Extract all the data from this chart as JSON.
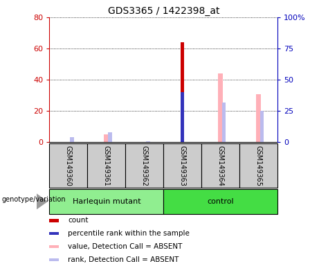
{
  "title": "GDS3365 / 1422398_at",
  "samples": [
    "GSM149360",
    "GSM149361",
    "GSM149362",
    "GSM149363",
    "GSM149364",
    "GSM149365"
  ],
  "red_bars": [
    0,
    0,
    0,
    64,
    0,
    0
  ],
  "blue_bars": [
    0,
    0,
    0,
    40,
    0,
    0
  ],
  "pink_bars": [
    0,
    5,
    0,
    0,
    44,
    31
  ],
  "lavender_bars": [
    4,
    8,
    1,
    0,
    32,
    25
  ],
  "left_ylim": [
    0,
    80
  ],
  "right_ylim": [
    0,
    100
  ],
  "left_yticks": [
    0,
    20,
    40,
    60,
    80
  ],
  "right_yticks": [
    0,
    25,
    50,
    75,
    100
  ],
  "right_yticklabels": [
    "0",
    "25",
    "50",
    "75",
    "100%"
  ],
  "left_color": "#CC0000",
  "right_color": "#0000BB",
  "fig_bg": "#FFFFFF",
  "plot_bg": "#FFFFFF",
  "gray_box": "#CCCCCC",
  "green_light": "#90EE90",
  "green_dark": "#44DD44",
  "bar_red": "#CC0000",
  "bar_blue": "#3333BB",
  "bar_pink": "#FFB0B8",
  "bar_lavender": "#BBBBEE",
  "legend_items": [
    {
      "label": "count",
      "color": "#CC0000"
    },
    {
      "label": "percentile rank within the sample",
      "color": "#3333BB"
    },
    {
      "label": "value, Detection Call = ABSENT",
      "color": "#FFB0B8"
    },
    {
      "label": "rank, Detection Call = ABSENT",
      "color": "#BBBBEE"
    }
  ],
  "group_labels": [
    "Harlequin mutant",
    "control"
  ],
  "group_ranges": [
    [
      0,
      2
    ],
    [
      3,
      5
    ]
  ]
}
